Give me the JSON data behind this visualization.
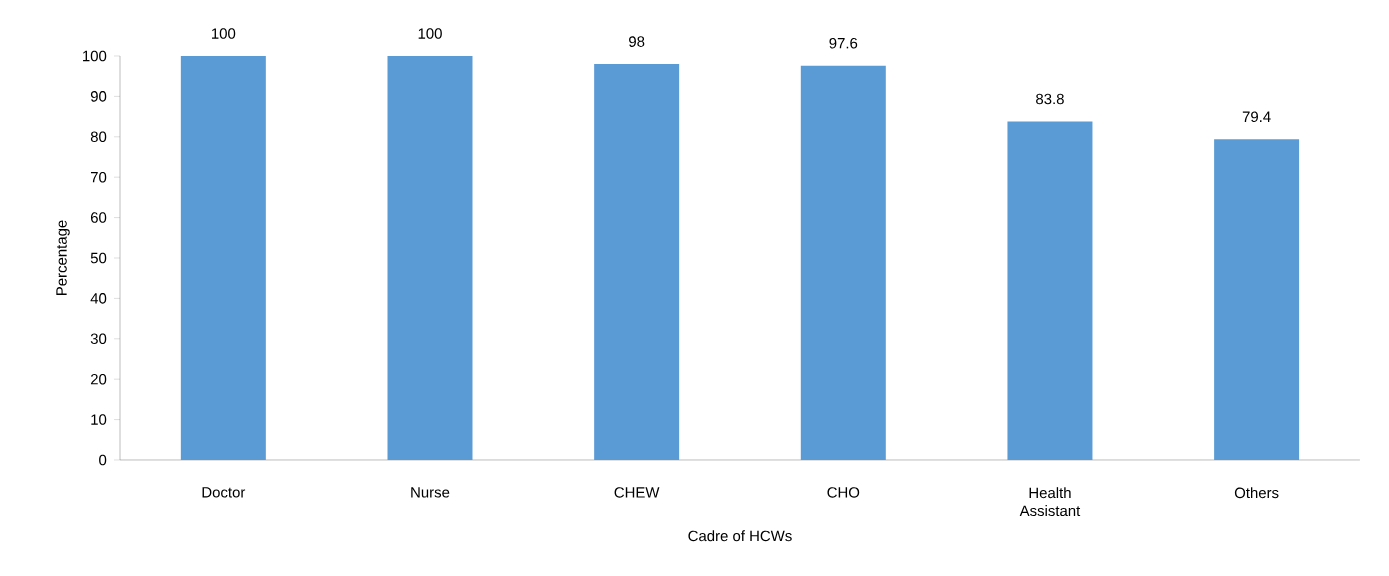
{
  "chart_data": {
    "type": "bar",
    "xlabel": "Cadre of HCWs",
    "ylabel": "Percentage",
    "categories": [
      "Doctor",
      "Nurse",
      "CHEW",
      "CHO",
      "Health Assistant",
      "Others"
    ],
    "values": [
      100,
      100,
      98,
      97.6,
      83.8,
      79.4
    ],
    "value_labels": [
      "100",
      "100",
      "98",
      "97.6",
      "83.8",
      "79.4"
    ],
    "color": "#5b9bd5",
    "ylim": [
      0,
      100
    ],
    "yticks": [
      0,
      10,
      20,
      30,
      40,
      50,
      60,
      70,
      80,
      90,
      100
    ],
    "grid": false
  }
}
